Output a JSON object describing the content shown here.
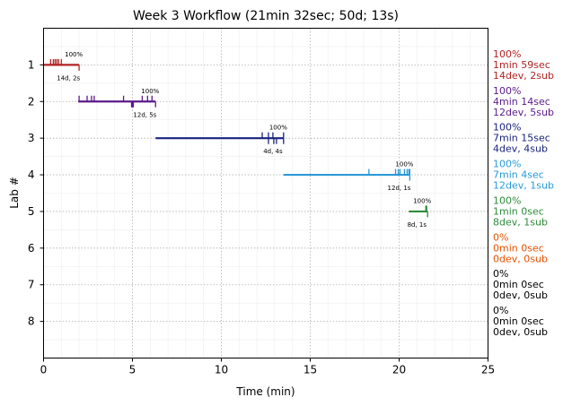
{
  "chart_data": {
    "type": "timeline",
    "title": "Week 3 Workflow (21min 32sec; 50d; 13s)",
    "xlabel": "Time (min)",
    "ylabel": "Lab #",
    "xlim": [
      0,
      25
    ],
    "ylim": [
      0,
      9
    ],
    "xticks": [
      "0",
      "5",
      "10",
      "15",
      "20",
      "25"
    ],
    "yticks": [
      "1",
      "2",
      "3",
      "4",
      "5",
      "6",
      "7",
      "8"
    ],
    "grid": true,
    "labs": [
      {
        "lab": 1,
        "color": "#b22222",
        "start": 0.0,
        "end": 2.0,
        "devs": [
          0.4,
          0.55,
          0.65,
          0.75,
          0.85,
          1.0
        ],
        "subs": [
          2.0
        ],
        "percent": "100%",
        "time": "1min 59sec",
        "counts": "14dev, 2sub",
        "mini": "14d, 2s"
      },
      {
        "lab": 2,
        "color": "#5b1a8b",
        "start": 1.95,
        "end": 6.3,
        "devs": [
          2.0,
          2.45,
          2.7,
          2.85,
          4.5,
          5.55,
          5.85,
          6.1
        ],
        "subs": [
          4.95,
          5.0,
          5.05,
          6.3
        ],
        "percent": "100%",
        "time": "4min 14sec",
        "counts": "12dev, 5sub",
        "mini": "12d, 5s"
      },
      {
        "lab": 3,
        "color": "#1a237e",
        "start": 6.3,
        "end": 13.5,
        "devs": [
          12.3,
          12.65,
          12.9,
          13.5
        ],
        "subs": [
          12.65,
          12.95,
          13.1,
          13.5
        ],
        "percent": "100%",
        "time": "7min 15sec",
        "counts": "4dev, 4sub",
        "mini": "4d, 4s"
      },
      {
        "lab": 4,
        "color": "#2a9ad8",
        "start": 13.5,
        "end": 20.6,
        "devs": [
          18.3,
          19.8,
          19.95,
          20.05,
          20.3,
          20.45,
          20.55,
          20.6
        ],
        "subs": [
          20.6
        ],
        "percent": "100%",
        "time": "7min 4sec",
        "counts": "12dev, 1sub",
        "mini": "12d, 1s"
      },
      {
        "lab": 5,
        "color": "#2e8b3a",
        "start": 20.55,
        "end": 21.6,
        "devs": [
          21.5,
          21.55
        ],
        "subs": [
          21.6
        ],
        "percent": "100%",
        "time": "1min 0sec",
        "counts": "8dev, 1sub",
        "mini": "8d, 1s"
      },
      {
        "lab": 6,
        "color": "#e65100",
        "percent": "0%",
        "time": "0min 0sec",
        "counts": "0dev, 0sub"
      },
      {
        "lab": 7,
        "color": "#000000",
        "percent": "0%",
        "time": "0min 0sec",
        "counts": "0dev, 0sub"
      },
      {
        "lab": 8,
        "color": "#000000",
        "percent": "0%",
        "time": "0min 0sec",
        "counts": "0dev, 0sub"
      }
    ]
  }
}
